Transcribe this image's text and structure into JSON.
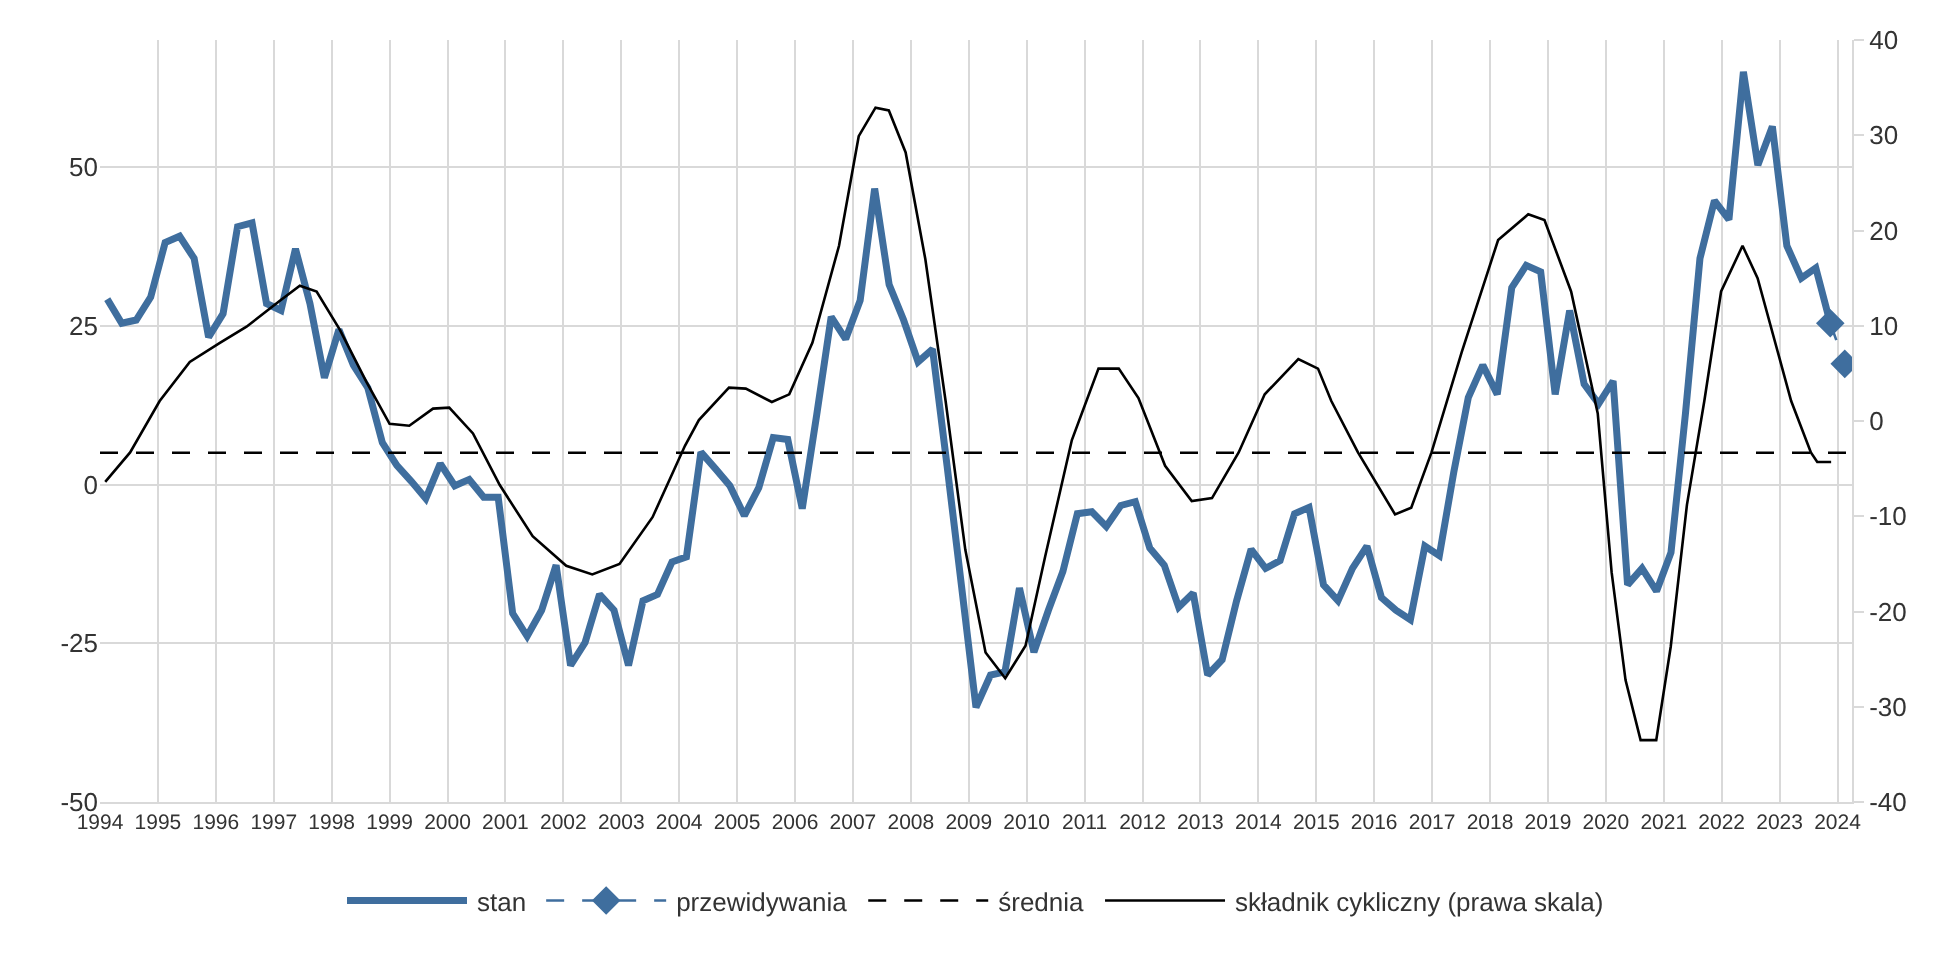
{
  "chart_data": {
    "type": "line",
    "xlim": [
      1994,
      2024.25
    ],
    "xticks": [
      1994,
      1995,
      1996,
      1997,
      1998,
      1999,
      2000,
      2001,
      2002,
      2003,
      2004,
      2005,
      2006,
      2007,
      2008,
      2009,
      2010,
      2011,
      2012,
      2013,
      2014,
      2015,
      2016,
      2017,
      2018,
      2019,
      2020,
      2021,
      2022,
      2023,
      2024
    ],
    "ylim": [
      -50,
      70
    ],
    "yticks": [
      -50,
      -25,
      0,
      25,
      50
    ],
    "y2lim": [
      -40,
      40
    ],
    "y2ticks": [
      -40,
      -30,
      -20,
      -10,
      0,
      10,
      20,
      30,
      40
    ],
    "grid": true,
    "legend": "bottom",
    "series": [
      {
        "name": "stan",
        "color": "#3f6e9e",
        "line_style": "solid",
        "values": [
          29.2,
          25.4,
          25.9,
          29.5,
          38.1,
          39.1,
          35.6,
          23.2,
          26.9,
          40.6,
          41.2,
          28.5,
          27.4,
          37.1,
          28.5,
          16.8,
          24.4,
          18.8,
          15.2,
          6.6,
          3.0,
          0.5,
          -2.2,
          3.3,
          -0.2,
          0.8,
          -2.0,
          -2.0,
          -20.3,
          -23.9,
          -19.8,
          -12.7,
          -28.5,
          -24.9,
          -17.3,
          -19.8,
          -28.5,
          -18.3,
          -17.3,
          -12.2,
          -11.4,
          5.1,
          2.5,
          -0.2,
          -4.9,
          -0.5,
          7.4,
          7.1,
          -3.8,
          11.0,
          26.4,
          22.9,
          29.0,
          46.6,
          31.5,
          25.9,
          19.3,
          21.3,
          3.0,
          -16.0,
          -35.1,
          -30.0,
          -29.5,
          -16.3,
          -26.4,
          -19.8,
          -13.7,
          -4.6,
          -4.3,
          -6.6,
          -3.3,
          -2.7,
          -10.0,
          -12.7,
          -19.3,
          -17.1,
          -30.0,
          -27.6,
          -18.3,
          -10.2,
          -13.2,
          -12.0,
          -4.6,
          -3.6,
          -15.8,
          -18.3,
          -13.2,
          -9.7,
          -17.8,
          -19.8,
          -21.3,
          -9.7,
          -11.2,
          2.0,
          13.7,
          18.8,
          14.2,
          31.0,
          34.5,
          33.5,
          14.2,
          27.4,
          15.8,
          12.7,
          16.3,
          -15.8,
          -13.2,
          -16.8,
          -10.7,
          11.2,
          35.6,
          44.7,
          41.7,
          65.0,
          50.3,
          56.4,
          37.6,
          32.5,
          34.1,
          25.4
        ],
        "x": [
          1994.125,
          1994.375,
          1994.625,
          1994.875,
          1995.125,
          1995.375,
          1995.625,
          1995.875,
          1996.125,
          1996.375,
          1996.625,
          1996.875,
          1997.125,
          1997.375,
          1997.625,
          1997.875,
          1998.125,
          1998.375,
          1998.625,
          1998.875,
          1999.125,
          1999.375,
          1999.625,
          1999.875,
          2000.125,
          2000.375,
          2000.625,
          2000.875,
          2001.125,
          2001.375,
          2001.625,
          2001.875,
          2002.125,
          2002.375,
          2002.625,
          2002.875,
          2003.125,
          2003.375,
          2003.625,
          2003.875,
          2004.125,
          2004.375,
          2004.625,
          2004.875,
          2005.125,
          2005.375,
          2005.625,
          2005.875,
          2006.125,
          2006.375,
          2006.625,
          2006.875,
          2007.125,
          2007.375,
          2007.625,
          2007.875,
          2008.125,
          2008.375,
          2008.625,
          2008.875,
          2009.125,
          2009.375,
          2009.625,
          2009.875,
          2010.125,
          2010.375,
          2010.625,
          2010.875,
          2011.125,
          2011.375,
          2011.625,
          2011.875,
          2012.125,
          2012.375,
          2012.625,
          2012.875,
          2013.125,
          2013.375,
          2013.625,
          2013.875,
          2014.125,
          2014.375,
          2014.625,
          2014.875,
          2015.125,
          2015.375,
          2015.625,
          2015.875,
          2016.125,
          2016.375,
          2016.625,
          2016.875,
          2017.125,
          2017.375,
          2017.625,
          2017.875,
          2018.125,
          2018.375,
          2018.625,
          2018.875,
          2019.125,
          2019.375,
          2019.625,
          2019.875,
          2020.125,
          2020.375,
          2020.625,
          2020.875,
          2021.125,
          2021.375,
          2021.625,
          2021.875,
          2022.125,
          2022.375,
          2022.625,
          2022.875,
          2023.125,
          2023.375,
          2023.625,
          2023.875
        ]
      },
      {
        "name": "przewidywania",
        "color": "#3f6e9e",
        "line_style": "dashed",
        "marker": "diamond",
        "x": [
          2023.875,
          2024.125
        ],
        "values": [
          25.4,
          19.0
        ]
      },
      {
        "name": "składnik cykliczny (prawa skala)",
        "color": "#000000",
        "line_style": "solid",
        "axis": "y2",
        "x": [
          1994.09,
          1994.52,
          1995.03,
          1995.55,
          1996.07,
          1996.53,
          1997.1,
          1997.45,
          1997.74,
          1998.14,
          1998.6,
          1999.0,
          1999.34,
          1999.75,
          2000.03,
          2000.44,
          2000.9,
          2001.47,
          2002.05,
          2002.5,
          2002.97,
          2003.54,
          2004.1,
          2004.34,
          2004.86,
          2005.15,
          2005.6,
          2005.9,
          2006.3,
          2006.76,
          2007.1,
          2007.39,
          2007.62,
          2007.91,
          2008.25,
          2008.6,
          2008.94,
          2009.29,
          2009.63,
          2009.98,
          2010.32,
          2010.78,
          2011.24,
          2011.59,
          2011.93,
          2012.39,
          2012.85,
          2013.2,
          2013.66,
          2014.11,
          2014.69,
          2015.03,
          2015.26,
          2015.72,
          2016.36,
          2016.64,
          2016.99,
          2017.51,
          2018.14,
          2018.66,
          2018.94,
          2019.4,
          2019.86,
          2020.1,
          2020.34,
          2020.6,
          2020.87,
          2021.12,
          2021.4,
          2021.7,
          2021.99,
          2022.36,
          2022.62,
          2023.2,
          2023.54,
          2023.65,
          2023.89
        ],
        "values": [
          -6.4,
          -3.3,
          2.1,
          6.2,
          8.2,
          9.9,
          12.6,
          14.2,
          13.6,
          9.6,
          4.1,
          -0.3,
          -0.5,
          1.3,
          1.4,
          -1.3,
          -6.7,
          -12.1,
          -15.2,
          -16.1,
          -15.0,
          -10.1,
          -2.6,
          0.1,
          3.5,
          3.4,
          2.0,
          2.8,
          8.2,
          18.4,
          29.9,
          32.9,
          32.6,
          28.2,
          17.0,
          2.1,
          -13.5,
          -24.3,
          -27.0,
          -23.6,
          -14.2,
          -2.0,
          5.5,
          5.5,
          2.4,
          -4.7,
          -8.4,
          -8.1,
          -3.3,
          2.8,
          6.5,
          5.5,
          2.1,
          -3.3,
          -9.8,
          -9.1,
          -3.3,
          7.2,
          19.0,
          21.7,
          21.1,
          13.6,
          0.8,
          -15.9,
          -27.2,
          -33.5,
          -33.5,
          -23.7,
          -8.8,
          2.1,
          13.6,
          18.4,
          15.0,
          2.1,
          -3.3,
          -4.3,
          -4.3
        ]
      }
    ],
    "ref_lines": [
      {
        "axis": "y",
        "value": 5,
        "label": "średnia",
        "color": "#000000",
        "line_style": "dashed"
      }
    ]
  }
}
